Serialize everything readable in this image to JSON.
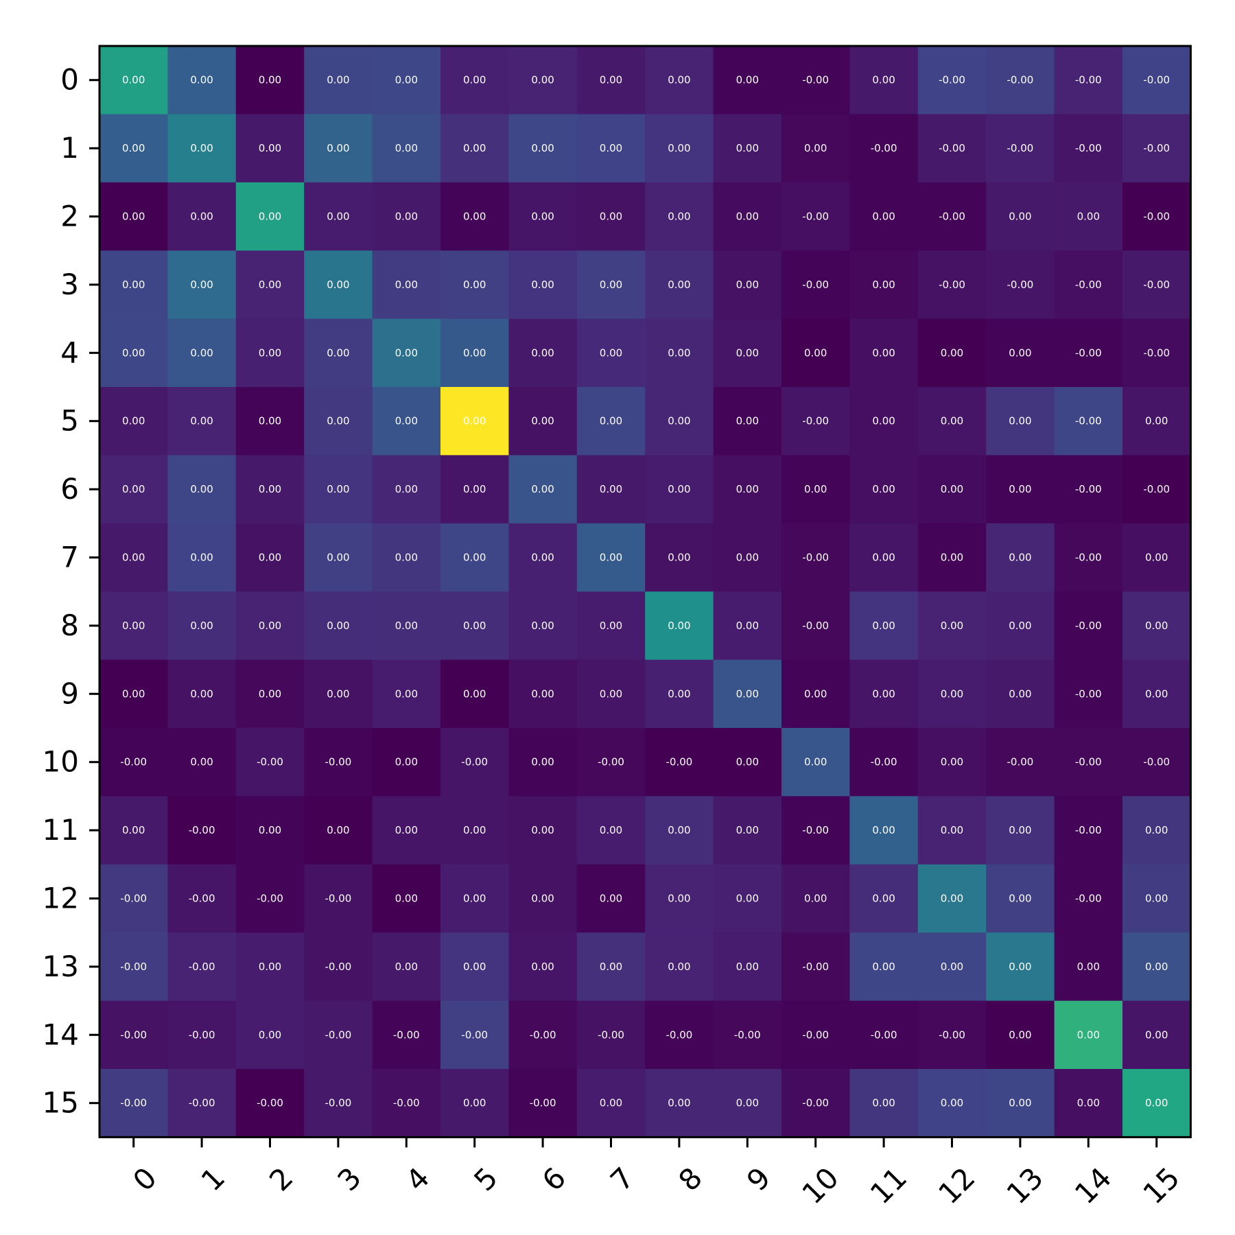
{
  "chart_data": {
    "type": "heatmap",
    "title": "",
    "xlabel": "",
    "ylabel": "",
    "x_categories": [
      "0",
      "1",
      "2",
      "3",
      "4",
      "5",
      "6",
      "7",
      "8",
      "9",
      "10",
      "11",
      "12",
      "13",
      "14",
      "15"
    ],
    "y_categories": [
      "0",
      "1",
      "2",
      "3",
      "4",
      "5",
      "6",
      "7",
      "8",
      "9",
      "10",
      "11",
      "12",
      "13",
      "14",
      "15"
    ],
    "colormap": "viridis",
    "color_range": [
      0,
      1
    ],
    "intensity": [
      [
        0.57,
        0.3,
        0.0,
        0.21,
        0.22,
        0.09,
        0.1,
        0.07,
        0.1,
        0.01,
        0.01,
        0.07,
        0.2,
        0.19,
        0.1,
        0.2
      ],
      [
        0.3,
        0.43,
        0.07,
        0.32,
        0.24,
        0.14,
        0.22,
        0.2,
        0.15,
        0.07,
        0.02,
        0.01,
        0.07,
        0.09,
        0.06,
        0.1
      ],
      [
        0.0,
        0.07,
        0.57,
        0.08,
        0.07,
        0.01,
        0.06,
        0.05,
        0.1,
        0.03,
        0.04,
        0.01,
        0.01,
        0.07,
        0.07,
        0.0
      ],
      [
        0.21,
        0.35,
        0.1,
        0.39,
        0.18,
        0.19,
        0.15,
        0.19,
        0.13,
        0.05,
        0.01,
        0.02,
        0.05,
        0.06,
        0.04,
        0.07
      ],
      [
        0.22,
        0.27,
        0.09,
        0.18,
        0.37,
        0.28,
        0.07,
        0.12,
        0.11,
        0.06,
        0.0,
        0.04,
        0.0,
        0.01,
        0.01,
        0.03
      ],
      [
        0.07,
        0.1,
        0.01,
        0.17,
        0.26,
        1.0,
        0.05,
        0.21,
        0.11,
        0.01,
        0.06,
        0.04,
        0.06,
        0.16,
        0.21,
        0.06
      ],
      [
        0.1,
        0.21,
        0.07,
        0.15,
        0.11,
        0.06,
        0.26,
        0.07,
        0.08,
        0.04,
        0.01,
        0.04,
        0.03,
        0.01,
        0.01,
        0.0
      ],
      [
        0.07,
        0.2,
        0.05,
        0.19,
        0.16,
        0.21,
        0.09,
        0.29,
        0.05,
        0.04,
        0.02,
        0.06,
        0.01,
        0.11,
        0.02,
        0.04
      ],
      [
        0.1,
        0.13,
        0.1,
        0.13,
        0.13,
        0.13,
        0.09,
        0.08,
        0.5,
        0.08,
        0.02,
        0.15,
        0.1,
        0.09,
        0.01,
        0.11
      ],
      [
        0.0,
        0.05,
        0.02,
        0.05,
        0.08,
        0.0,
        0.04,
        0.06,
        0.09,
        0.26,
        0.01,
        0.06,
        0.08,
        0.07,
        0.01,
        0.08
      ],
      [
        0.01,
        0.01,
        0.06,
        0.01,
        0.0,
        0.06,
        0.01,
        0.02,
        0.0,
        0.0,
        0.27,
        0.01,
        0.04,
        0.02,
        0.02,
        0.02
      ],
      [
        0.07,
        0.0,
        0.01,
        0.0,
        0.06,
        0.06,
        0.05,
        0.08,
        0.13,
        0.07,
        0.01,
        0.31,
        0.1,
        0.14,
        0.01,
        0.16
      ],
      [
        0.17,
        0.06,
        0.01,
        0.05,
        0.0,
        0.08,
        0.05,
        0.01,
        0.1,
        0.09,
        0.05,
        0.13,
        0.4,
        0.19,
        0.01,
        0.18
      ],
      [
        0.18,
        0.1,
        0.08,
        0.05,
        0.07,
        0.15,
        0.06,
        0.14,
        0.1,
        0.08,
        0.02,
        0.21,
        0.21,
        0.4,
        0.01,
        0.25
      ],
      [
        0.05,
        0.06,
        0.08,
        0.07,
        0.01,
        0.19,
        0.02,
        0.05,
        0.01,
        0.02,
        0.01,
        0.01,
        0.02,
        0.0,
        0.64,
        0.06
      ],
      [
        0.18,
        0.1,
        0.0,
        0.07,
        0.04,
        0.07,
        0.01,
        0.08,
        0.11,
        0.11,
        0.03,
        0.16,
        0.2,
        0.21,
        0.04,
        0.6
      ]
    ],
    "cell_labels": [
      [
        "0.00",
        "0.00",
        "0.00",
        "0.00",
        "0.00",
        "0.00",
        "0.00",
        "0.00",
        "0.00",
        "0.00",
        "-0.00",
        "0.00",
        "-0.00",
        "-0.00",
        "-0.00",
        "-0.00"
      ],
      [
        "0.00",
        "0.00",
        "0.00",
        "0.00",
        "0.00",
        "0.00",
        "0.00",
        "0.00",
        "0.00",
        "0.00",
        "0.00",
        "-0.00",
        "-0.00",
        "-0.00",
        "-0.00",
        "-0.00"
      ],
      [
        "0.00",
        "0.00",
        "0.00",
        "0.00",
        "0.00",
        "0.00",
        "0.00",
        "0.00",
        "0.00",
        "0.00",
        "-0.00",
        "0.00",
        "-0.00",
        "0.00",
        "0.00",
        "-0.00"
      ],
      [
        "0.00",
        "0.00",
        "0.00",
        "0.00",
        "0.00",
        "0.00",
        "0.00",
        "0.00",
        "0.00",
        "0.00",
        "-0.00",
        "0.00",
        "-0.00",
        "-0.00",
        "-0.00",
        "-0.00"
      ],
      [
        "0.00",
        "0.00",
        "0.00",
        "0.00",
        "0.00",
        "0.00",
        "0.00",
        "0.00",
        "0.00",
        "0.00",
        "0.00",
        "0.00",
        "0.00",
        "0.00",
        "-0.00",
        "-0.00"
      ],
      [
        "0.00",
        "0.00",
        "0.00",
        "0.00",
        "0.00",
        "0.00",
        "0.00",
        "0.00",
        "0.00",
        "0.00",
        "-0.00",
        "0.00",
        "0.00",
        "0.00",
        "-0.00",
        "0.00"
      ],
      [
        "0.00",
        "0.00",
        "0.00",
        "0.00",
        "0.00",
        "0.00",
        "0.00",
        "0.00",
        "0.00",
        "0.00",
        "0.00",
        "0.00",
        "0.00",
        "0.00",
        "-0.00",
        "-0.00"
      ],
      [
        "0.00",
        "0.00",
        "0.00",
        "0.00",
        "0.00",
        "0.00",
        "0.00",
        "0.00",
        "0.00",
        "0.00",
        "-0.00",
        "0.00",
        "0.00",
        "0.00",
        "-0.00",
        "0.00"
      ],
      [
        "0.00",
        "0.00",
        "0.00",
        "0.00",
        "0.00",
        "0.00",
        "0.00",
        "0.00",
        "0.00",
        "0.00",
        "-0.00",
        "0.00",
        "0.00",
        "0.00",
        "-0.00",
        "0.00"
      ],
      [
        "0.00",
        "0.00",
        "0.00",
        "0.00",
        "0.00",
        "0.00",
        "0.00",
        "0.00",
        "0.00",
        "0.00",
        "0.00",
        "0.00",
        "0.00",
        "0.00",
        "-0.00",
        "0.00"
      ],
      [
        "-0.00",
        "0.00",
        "-0.00",
        "-0.00",
        "0.00",
        "-0.00",
        "0.00",
        "-0.00",
        "-0.00",
        "0.00",
        "0.00",
        "-0.00",
        "0.00",
        "-0.00",
        "-0.00",
        "-0.00"
      ],
      [
        "0.00",
        "-0.00",
        "0.00",
        "0.00",
        "0.00",
        "0.00",
        "0.00",
        "0.00",
        "0.00",
        "0.00",
        "-0.00",
        "0.00",
        "0.00",
        "0.00",
        "-0.00",
        "0.00"
      ],
      [
        "-0.00",
        "-0.00",
        "-0.00",
        "-0.00",
        "0.00",
        "0.00",
        "0.00",
        "0.00",
        "0.00",
        "0.00",
        "0.00",
        "0.00",
        "0.00",
        "0.00",
        "-0.00",
        "0.00"
      ],
      [
        "-0.00",
        "-0.00",
        "0.00",
        "-0.00",
        "0.00",
        "0.00",
        "0.00",
        "0.00",
        "0.00",
        "0.00",
        "-0.00",
        "0.00",
        "0.00",
        "0.00",
        "0.00",
        "0.00"
      ],
      [
        "-0.00",
        "-0.00",
        "0.00",
        "-0.00",
        "-0.00",
        "-0.00",
        "-0.00",
        "-0.00",
        "-0.00",
        "-0.00",
        "-0.00",
        "-0.00",
        "-0.00",
        "0.00",
        "0.00",
        "0.00"
      ],
      [
        "-0.00",
        "-0.00",
        "-0.00",
        "-0.00",
        "-0.00",
        "0.00",
        "-0.00",
        "0.00",
        "0.00",
        "0.00",
        "-0.00",
        "0.00",
        "0.00",
        "0.00",
        "0.00",
        "0.00"
      ]
    ]
  }
}
